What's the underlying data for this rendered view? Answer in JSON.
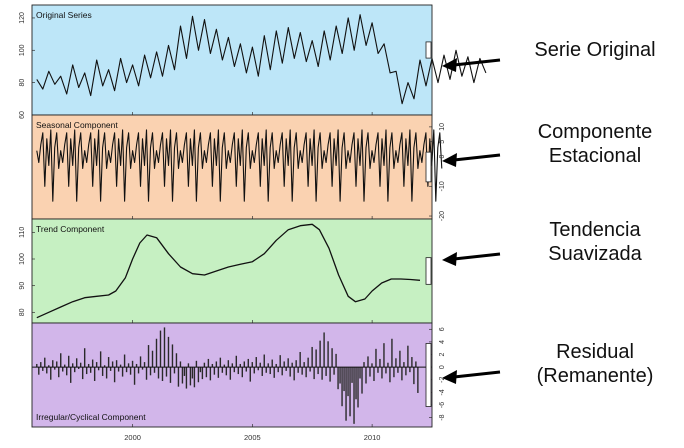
{
  "chart_data": {
    "type": "line",
    "x_ticks": [
      2000,
      2005,
      2010
    ],
    "xlim": [
      1995.8,
      2012.5
    ],
    "panels": [
      {
        "id": "original",
        "title": "Original Series",
        "kind": "line",
        "ylim": [
          60,
          128
        ],
        "yticks": [
          60,
          80,
          100,
          120
        ],
        "ytick_side": "left",
        "background": "#bde6f8",
        "scale_bar": 10,
        "series": {
          "x_start": 1996.0,
          "x_step": 0.25,
          "values": [
            82,
            76,
            87,
            79,
            84,
            73,
            91,
            77,
            86,
            72,
            94,
            78,
            88,
            75,
            95,
            80,
            91,
            78,
            97,
            83,
            99,
            84,
            103,
            88,
            115,
            95,
            121,
            100,
            119,
            98,
            113,
            94,
            108,
            90,
            104,
            86,
            102,
            84,
            109,
            88,
            112,
            92,
            114,
            95,
            111,
            93,
            106,
            90,
            112,
            94,
            115,
            98,
            120,
            100,
            122,
            103,
            117,
            98,
            104,
            86,
            87,
            67,
            80,
            70,
            94,
            78,
            95,
            80,
            97,
            82,
            100,
            84,
            96,
            80,
            95,
            86
          ]
        },
        "annotation": [
          "Serie Original"
        ]
      },
      {
        "id": "seasonal",
        "title": "Seasonal Component",
        "kind": "line",
        "ylim": [
          -21,
          14
        ],
        "yticks": [
          -20,
          -10,
          0,
          5,
          10
        ],
        "ytick_side": "right",
        "background": "#fad2b1",
        "scale_bar": 10,
        "series": {
          "x_start": 1996.0,
          "x_step": 0.0833,
          "values": [
            2,
            -2,
            4,
            8,
            -10,
            6,
            -3,
            9,
            -15,
            3,
            8,
            -4,
            2,
            -2,
            4,
            8,
            -10,
            6,
            -3,
            9,
            -15,
            3,
            8,
            -4,
            2,
            -2,
            4,
            8,
            -10,
            6,
            -3,
            9,
            -15,
            3,
            8,
            -4,
            2,
            -2,
            4,
            8,
            -10,
            6,
            -3,
            9,
            -15,
            3,
            8,
            -4,
            2,
            -2,
            4,
            8,
            -10,
            6,
            -3,
            9,
            -15,
            3,
            8,
            -4,
            2,
            -2,
            4,
            8,
            -10,
            6,
            -3,
            9,
            -15,
            3,
            8,
            -4,
            2,
            -2,
            4,
            8,
            -10,
            6,
            -3,
            9,
            -15,
            3,
            8,
            -4,
            2,
            -2,
            4,
            8,
            -10,
            6,
            -3,
            9,
            -15,
            3,
            8,
            -4,
            2,
            -2,
            4,
            8,
            -10,
            6,
            -3,
            9,
            -15,
            3,
            8,
            -4,
            2,
            -2,
            4,
            8,
            -10,
            6,
            -3,
            9,
            -15,
            3,
            8,
            -4,
            2,
            -2,
            4,
            8,
            -10,
            6,
            -3,
            9,
            -15,
            3,
            8,
            -4,
            2,
            -2,
            4,
            8,
            -10,
            6,
            -3,
            9,
            -15,
            3,
            8,
            -4,
            2,
            -2,
            4,
            8,
            -10,
            6,
            -3,
            9,
            -15,
            3,
            8,
            -4,
            2,
            -2,
            4,
            8,
            -10,
            6,
            -3,
            9,
            -15,
            3,
            8,
            -4,
            2,
            -2,
            4,
            8,
            -10,
            6,
            -3,
            9,
            -15,
            3,
            8,
            -4,
            2,
            -2,
            4,
            8,
            -10,
            6,
            -3,
            9,
            -15,
            3,
            8,
            -4,
            2,
            -2,
            4,
            8,
            -10,
            6,
            -3,
            9,
            -15,
            3,
            8,
            -4
          ]
        },
        "annotation": [
          "Componente",
          "Estacional"
        ]
      },
      {
        "id": "trend",
        "title": "Trend Component",
        "kind": "line",
        "ylim": [
          76,
          115
        ],
        "yticks": [
          80,
          90,
          100,
          110
        ],
        "ytick_side": "left",
        "background": "#c6f0c2",
        "scale_bar": 10,
        "series": {
          "x": [
            1996.0,
            1996.5,
            1997,
            1997.5,
            1998,
            1998.5,
            1999,
            1999.3,
            1999.7,
            2000,
            2000.3,
            2000.6,
            2001,
            2001.5,
            2002,
            2002.5,
            2003,
            2003.5,
            2004,
            2004.5,
            2005,
            2005.5,
            2006,
            2006.5,
            2007,
            2007.5,
            2007.8,
            2008.2,
            2008.6,
            2009,
            2009.3,
            2009.7,
            2010,
            2010.4,
            2010.8,
            2011.2,
            2011.6,
            2012.0
          ],
          "values": [
            78,
            80,
            82,
            84,
            85.5,
            86,
            86.5,
            88,
            93,
            100,
            106,
            109,
            108,
            102,
            97,
            94.5,
            94,
            95.5,
            97,
            98,
            99,
            102,
            107,
            111,
            112.5,
            113,
            111,
            104,
            94,
            86,
            84,
            85,
            88,
            91,
            92.5,
            92.5,
            92.3,
            92
          ]
        },
        "annotation": [
          "Tendencia",
          "Suavizada"
        ]
      },
      {
        "id": "irregular",
        "title": "Irregular/Cyclical Component",
        "kind": "bars",
        "ylim": [
          -9.5,
          7
        ],
        "yticks": [
          -8,
          -6,
          -4,
          -2,
          0,
          2,
          4,
          6
        ],
        "ytick_side": "right",
        "background": "#d2b6ea",
        "scale_bar": 10,
        "series": {
          "x_start": 1996.0,
          "x_step": 0.0833,
          "values": [
            0.5,
            -1.2,
            0.8,
            -0.6,
            1.5,
            -1.0,
            0.3,
            -2.0,
            1.1,
            -0.4,
            0.9,
            -1.6,
            2.2,
            -0.7,
            0.4,
            -1.3,
            1.8,
            -2.5,
            0.6,
            -0.8,
            1.4,
            -0.3,
            0.7,
            -1.9,
            3.0,
            -1.1,
            0.5,
            -0.9,
            1.2,
            -2.2,
            0.8,
            -0.5,
            2.5,
            -1.4,
            0.3,
            -1.8,
            1.6,
            -0.6,
            0.9,
            -2.4,
            1.1,
            -0.7,
            0.4,
            -1.5,
            2.0,
            -0.8,
            0.6,
            -1.2,
            1.0,
            -2.8,
            0.5,
            -1.0,
            1.7,
            -0.4,
            0.8,
            -2.0,
            3.5,
            -1.3,
            2.6,
            -0.9,
            4.5,
            -1.8,
            5.8,
            -2.2,
            6.3,
            -1.5,
            4.8,
            -2.5,
            3.6,
            -1.0,
            2.2,
            -3.1,
            0.9,
            -2.6,
            -1.4,
            -3.4,
            0.6,
            -2.9,
            -1.8,
            -3.2,
            1.0,
            -2.4,
            -0.8,
            -1.9,
            0.7,
            -1.6,
            1.3,
            -2.1,
            0.5,
            -1.2,
            0.9,
            -1.7,
            1.5,
            -0.9,
            0.4,
            -1.3,
            1.1,
            -2.0,
            0.6,
            -0.8,
            1.8,
            -1.1,
            0.5,
            -1.6,
            0.9,
            -0.7,
            1.3,
            -2.3,
            0.8,
            -1.0,
            1.6,
            -0.5,
            0.7,
            -1.4,
            2.0,
            -0.9,
            0.6,
            -1.1,
            1.2,
            -1.7,
            0.5,
            -0.8,
            1.9,
            -1.3,
            0.9,
            -0.6,
            1.4,
            -1.5,
            0.7,
            -2.1,
            1.1,
            -0.9,
            2.4,
            -1.2,
            0.8,
            -1.6,
            1.5,
            -0.7,
            3.2,
            -1.9,
            2.8,
            -1.1,
            4.2,
            -2.0,
            5.5,
            -1.4,
            4.1,
            -2.3,
            3.0,
            -1.2,
            2.1,
            -3.5,
            -2.6,
            -6.2,
            -3.8,
            -8.5,
            -4.6,
            -7.8,
            -2.5,
            -9.0,
            -5.1,
            -6.4,
            -1.8,
            -4.2,
            0.8,
            -2.6,
            1.7,
            -1.5,
            0.6,
            -2.2,
            2.9,
            -0.9,
            1.3,
            -1.8,
            3.8,
            -1.0,
            0.7,
            -2.4,
            4.5,
            -1.6,
            1.4,
            -0.9,
            2.6,
            -2.1,
            0.8,
            -1.3,
            3.4,
            -0.8,
            1.6,
            -2.7,
            0.9,
            -4.1
          ]
        },
        "annotation": [
          "Residual",
          "(Remanente)"
        ]
      }
    ]
  }
}
